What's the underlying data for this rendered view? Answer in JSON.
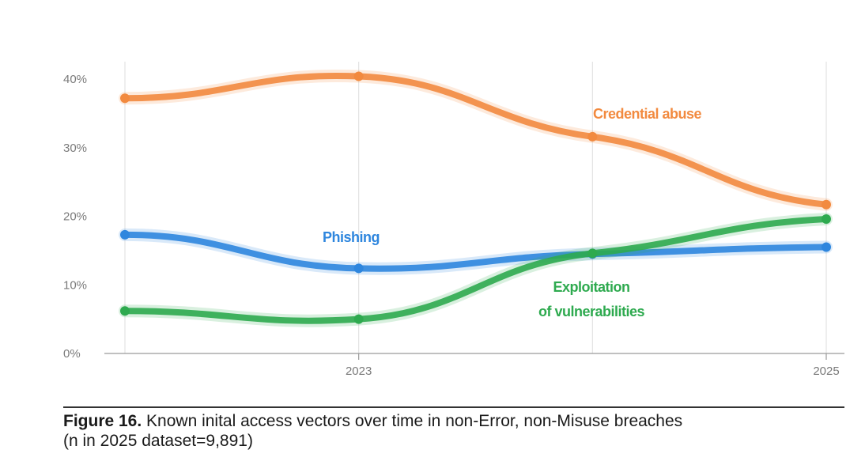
{
  "chart_data": {
    "type": "line",
    "x": [
      2022,
      2023,
      2024,
      2025
    ],
    "xlim": [
      2022,
      2025
    ],
    "x_tick_labels": [
      {
        "x": 2023,
        "label": "2023"
      },
      {
        "x": 2025,
        "label": "2025"
      }
    ],
    "ylim": [
      0,
      40
    ],
    "y_ticks": [
      {
        "value": 0,
        "label": "0%"
      },
      {
        "value": 10,
        "label": "10%"
      },
      {
        "value": 20,
        "label": "20%"
      },
      {
        "value": 30,
        "label": "30%"
      },
      {
        "value": 40,
        "label": "40%"
      }
    ],
    "series": [
      {
        "name": "Credential abuse",
        "label": "Credential abuse",
        "color": "#F28A3F",
        "values": [
          37.2,
          40.4,
          31.6,
          21.7
        ]
      },
      {
        "name": "Phishing",
        "label": "Phishing",
        "color": "#2E86DE",
        "values": [
          17.3,
          12.4,
          14.5,
          15.5
        ]
      },
      {
        "name": "Exploitation of vulnerabilities",
        "label_lines": [
          "Exploitation",
          "of vulnerabilities"
        ],
        "color": "#2EAA4F",
        "values": [
          6.2,
          5.0,
          14.6,
          19.6
        ]
      }
    ],
    "grid": "vertical"
  },
  "caption": {
    "figure_label": "Figure 16.",
    "text": " Known inital access vectors over time in non-Error, non-Misuse breaches",
    "line2": "(n in 2025 dataset=9,891)"
  }
}
